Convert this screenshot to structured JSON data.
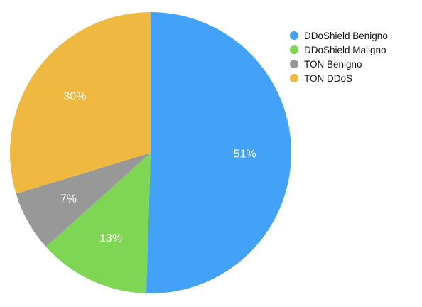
{
  "chart_data": {
    "type": "pie",
    "slices": [
      {
        "name": "DDoShield Benigno",
        "value": 51,
        "label": "51%",
        "color": "#43A1F7"
      },
      {
        "name": "DDoShield Maligno",
        "value": 13,
        "label": "13%",
        "color": "#7FD654"
      },
      {
        "name": "TON Benigno",
        "value": 7,
        "label": "7%",
        "color": "#989898"
      },
      {
        "name": "TON DDoS",
        "value": 30,
        "label": "30%",
        "color": "#EFB941"
      }
    ],
    "legend_position": "top-right",
    "start_angle": "12 o'clock",
    "direction": "clockwise"
  }
}
